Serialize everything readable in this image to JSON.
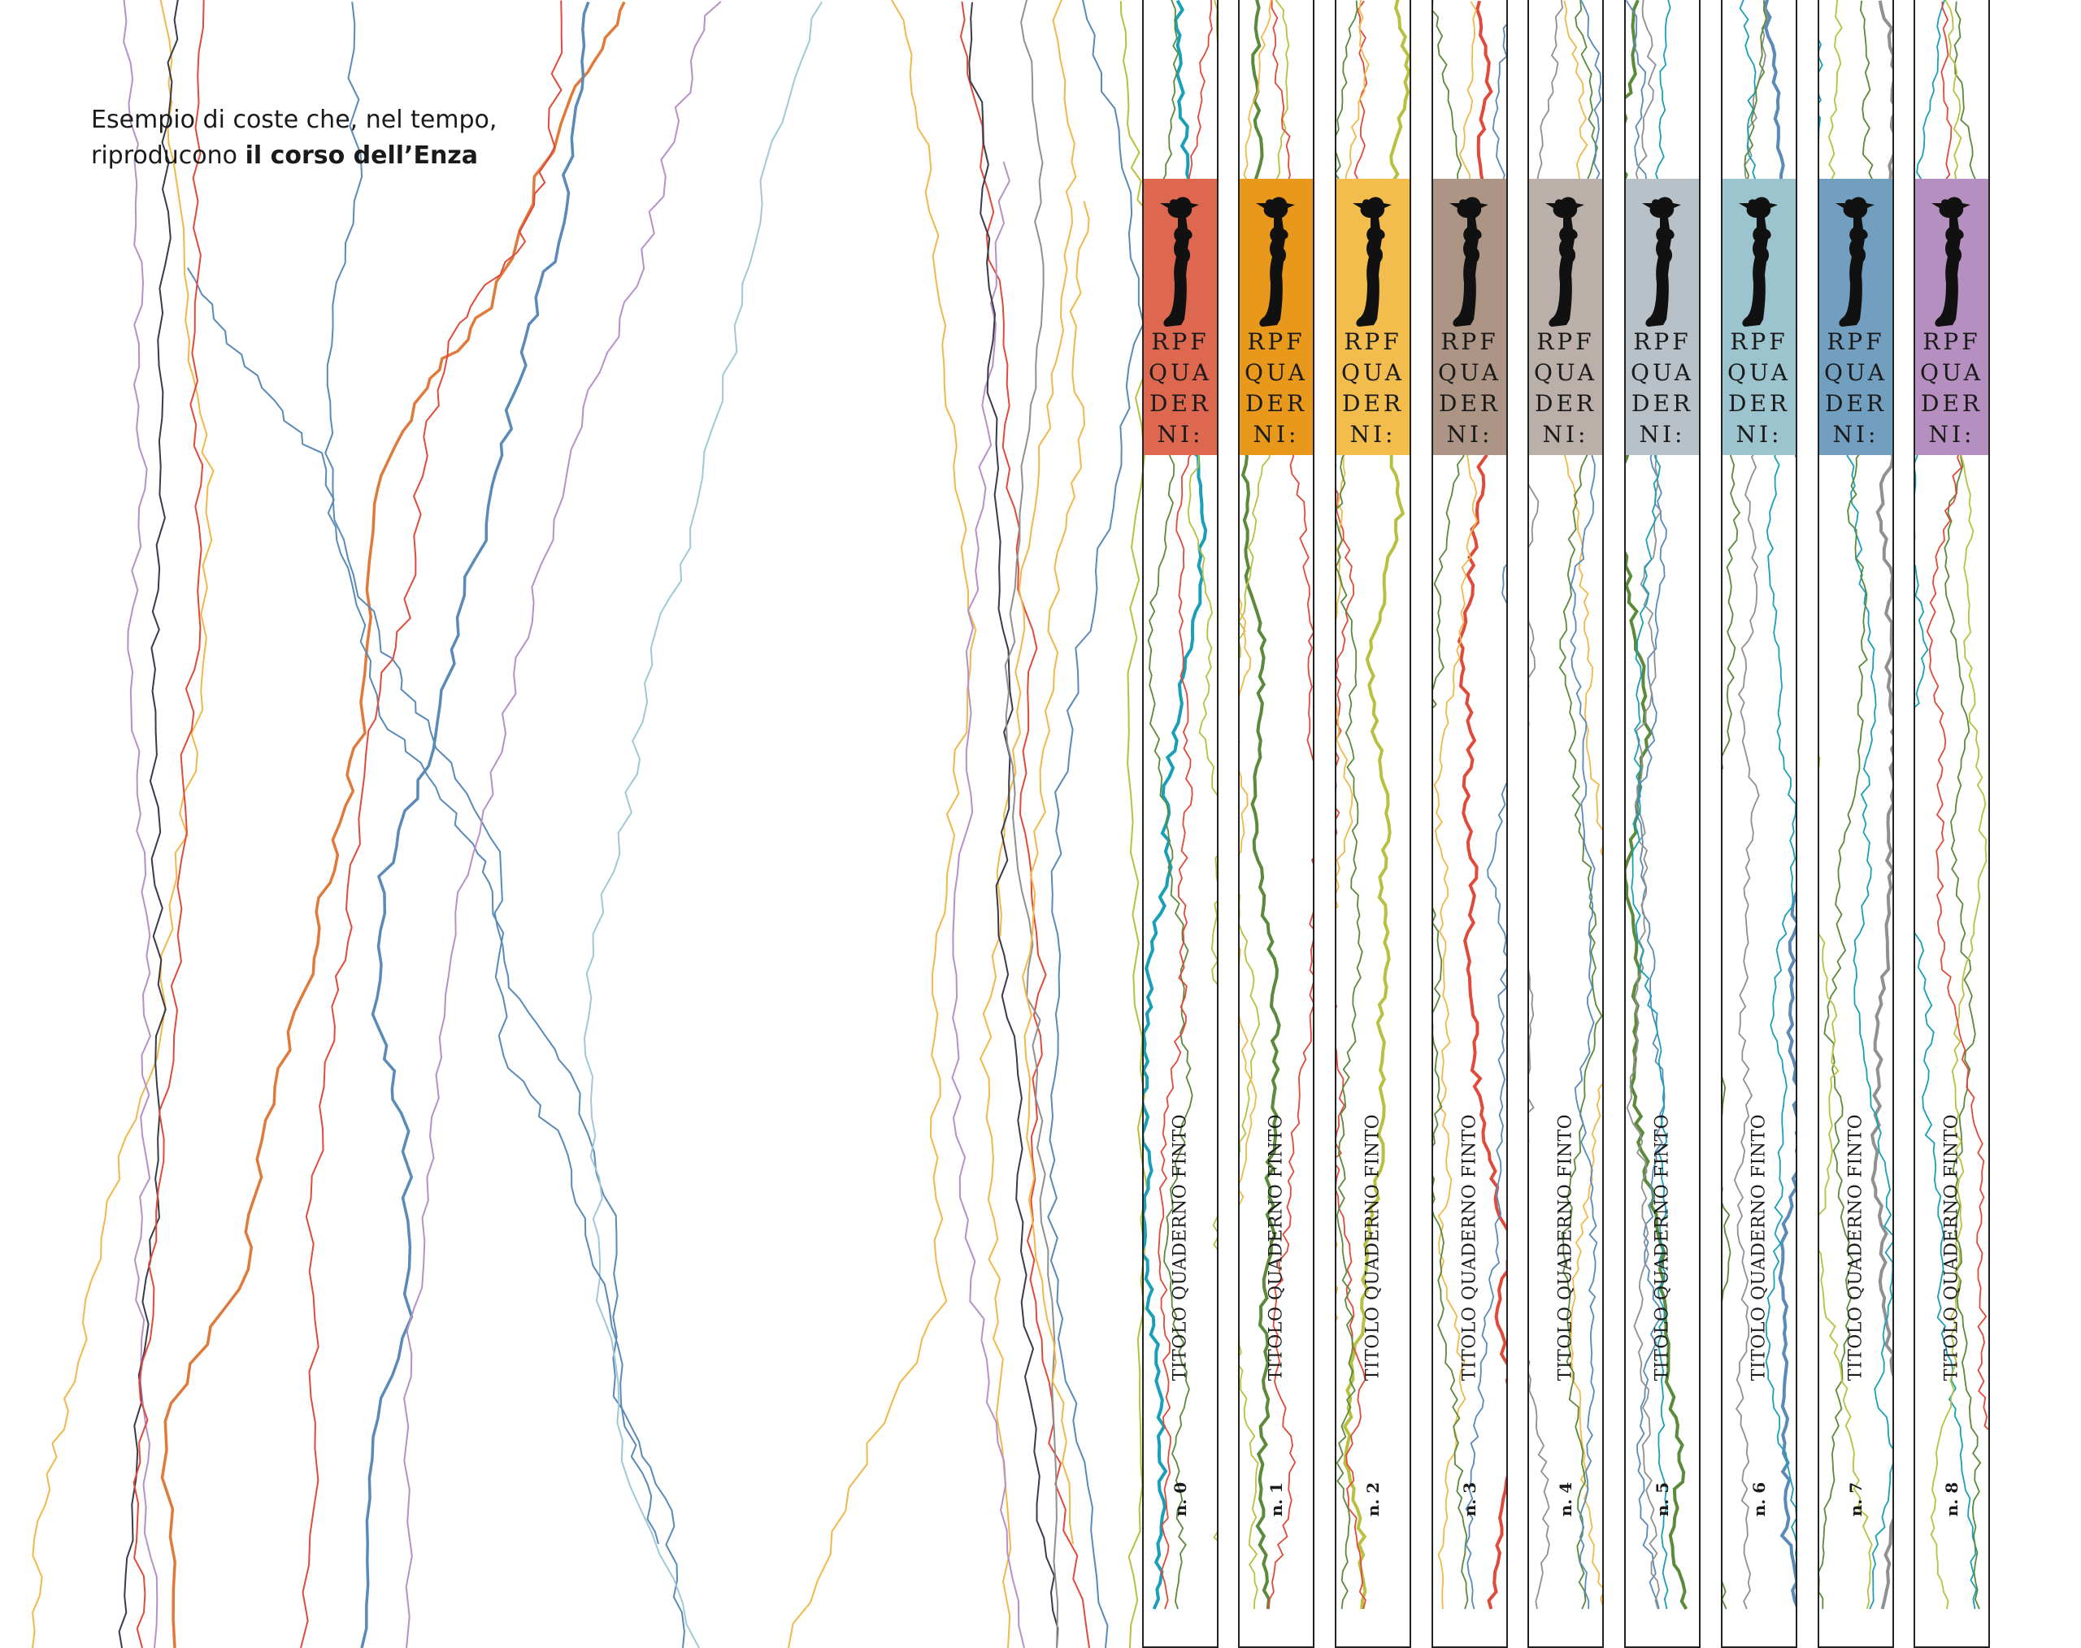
{
  "caption": {
    "line1": "Esempio di coste che, nel tempo,",
    "line2_prefix": "riproducono ",
    "line2_bold": "il corso dell’Enza"
  },
  "palette": {
    "teal": "#1a9fb8",
    "orange": "#e07a3a",
    "red": "#e04a3a",
    "yellow": "#f0b84a",
    "olive": "#b8c040",
    "green": "#5a8a3a",
    "blue": "#5a8ab8",
    "lightblue": "#a0c8d8",
    "purple": "#b890c8",
    "grey": "#909090",
    "dark": "#3a3a4a"
  },
  "spines": [
    {
      "color": "#de6750",
      "brand": [
        "RPF",
        "QUA",
        "DER",
        "NI:"
      ],
      "title": "TITOLO QUADERNO FINTO",
      "number": "n. 0",
      "icon": "figure-icon"
    },
    {
      "color": "#e8991c",
      "brand": [
        "RPF",
        "QUA",
        "DER",
        "NI:"
      ],
      "title": "TITOLO QUADERNO FINTO",
      "number": "n. 1",
      "icon": "figure-icon"
    },
    {
      "color": "#f3bd4e",
      "brand": [
        "RPF",
        "QUA",
        "DER",
        "NI:"
      ],
      "title": "TITOLO QUADERNO FINTO",
      "number": "n. 2",
      "icon": "figure-icon"
    },
    {
      "color": "#ad9585",
      "brand": [
        "RPF",
        "QUA",
        "DER",
        "NI:"
      ],
      "title": "TITOLO QUADERNO FINTO",
      "number": "n. 3",
      "icon": "figure-icon"
    },
    {
      "color": "#bbafaa",
      "brand": [
        "RPF",
        "QUA",
        "DER",
        "NI:"
      ],
      "title": "TITOLO QUADERNO FINTO",
      "number": "n. 4",
      "icon": "figure-icon"
    },
    {
      "color": "#b7c1c7",
      "brand": [
        "RPF",
        "QUA",
        "DER",
        "NI:"
      ],
      "title": "TITOLO QUADERNO FINTO",
      "number": "n. 5",
      "icon": "figure-icon"
    },
    {
      "color": "#9cc4cf",
      "brand": [
        "RPF",
        "QUA",
        "DER",
        "NI:"
      ],
      "title": "TITOLO QUADERNO FINTO",
      "number": "n. 6",
      "icon": "figure-icon"
    },
    {
      "color": "#729ebf",
      "brand": [
        "RPF",
        "QUA",
        "DER",
        "NI:"
      ],
      "title": "TITOLO QUADERNO FINTO",
      "number": "n. 7",
      "icon": "figure-icon"
    },
    {
      "color": "#b58fbf",
      "brand": [
        "RPF",
        "QUA",
        "DER",
        "NI:"
      ],
      "title": "TITOLO QUADERNO FINTO",
      "number": "n. 8",
      "icon": "figure-icon"
    }
  ]
}
